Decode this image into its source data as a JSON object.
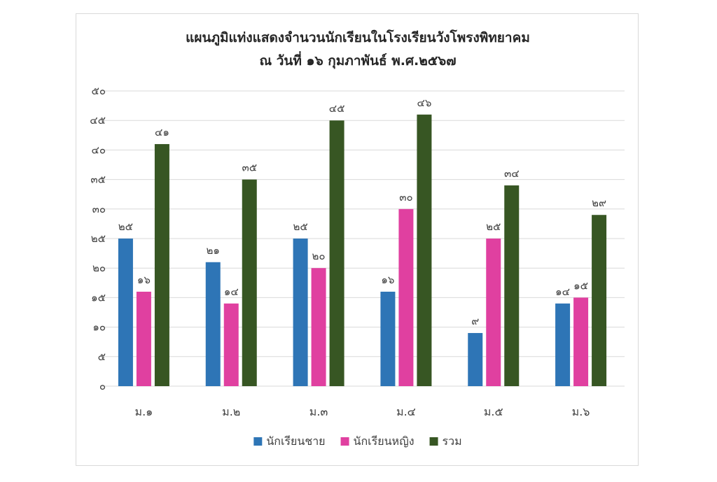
{
  "chart_data": {
    "type": "bar",
    "title": "แผนภูมิแท่งแสดงจำนวนนักเรียนในโรงเรียนวังโพรงพิทยาคม",
    "subtitle": "ณ วันที่ ๑๖ กุมภาพันธ์ พ.ศ.๒๕๖๗",
    "categories": [
      "ม.๑",
      "ม.๒",
      "ม.๓",
      "ม.๔",
      "ม.๕",
      "ม.๖"
    ],
    "ylim": [
      0,
      50
    ],
    "yticks": [
      0,
      5,
      10,
      15,
      20,
      25,
      30,
      35,
      40,
      45,
      50
    ],
    "ytick_labels": [
      "๐",
      "๕",
      "๑๐",
      "๑๕",
      "๒๐",
      "๒๕",
      "๓๐",
      "๓๕",
      "๔๐",
      "๔๕",
      "๕๐"
    ],
    "grid": true,
    "legend_position": "bottom",
    "series": [
      {
        "name": "นักเรียนชาย",
        "color": "#2e75b6",
        "values": [
          25,
          21,
          25,
          16,
          9,
          14
        ],
        "labels": [
          "๒๕",
          "๒๑",
          "๒๕",
          "๑๖",
          "๙",
          "๑๔"
        ]
      },
      {
        "name": "นักเรียนหญิง",
        "color": "#e040a0",
        "values": [
          16,
          14,
          20,
          30,
          25,
          15
        ],
        "labels": [
          "๑๖",
          "๑๔",
          "๒๐",
          "๓๐",
          "๒๕",
          "๑๕"
        ]
      },
      {
        "name": "รวม",
        "color": "#375623",
        "values": [
          41,
          35,
          45,
          46,
          34,
          29
        ],
        "labels": [
          "๔๑",
          "๓๕",
          "๔๕",
          "๔๖",
          "๓๔",
          "๒๙"
        ]
      }
    ]
  }
}
